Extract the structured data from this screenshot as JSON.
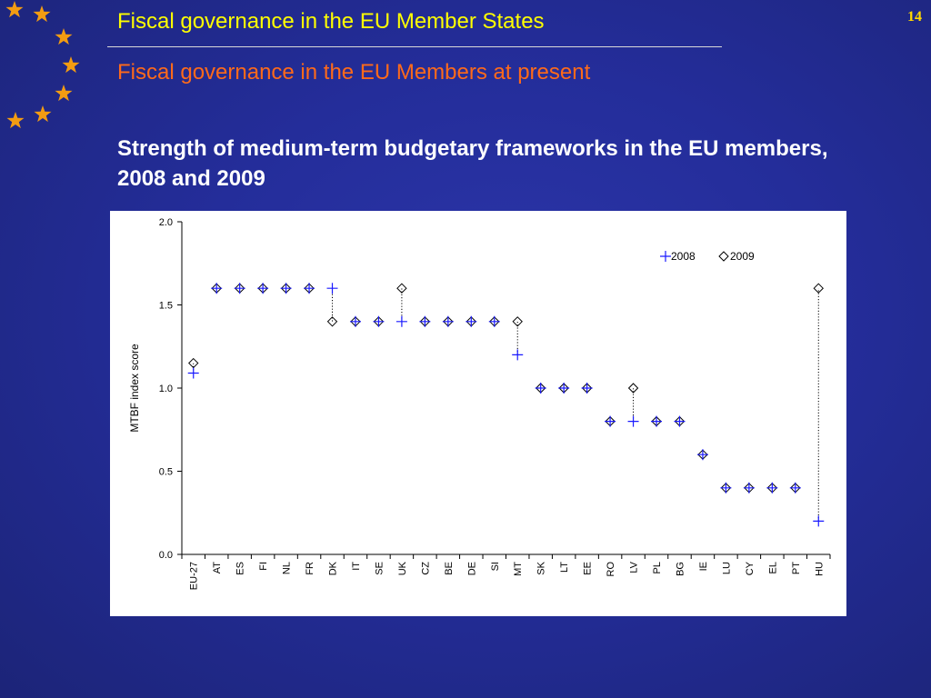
{
  "slide": {
    "page_number": "14",
    "title": "Fiscal governance in the EU Member States",
    "subtitle": "Fiscal governance in the EU Members at present",
    "heading": "Strength of medium-term budgetary frameworks in the EU members, 2008 and 2009",
    "title_color": "#ffff00",
    "subtitle_color": "#ff6a1a",
    "background_color": "#2a33a4",
    "star_color": "#f39c12"
  },
  "chart_data": {
    "type": "scatter",
    "title": "",
    "xlabel": "",
    "ylabel": "MTBF index score",
    "ylim": [
      0,
      2.0
    ],
    "yticks": [
      "0.0",
      "0.5",
      "1.0",
      "1.5",
      "2.0"
    ],
    "grid": false,
    "legend_position": "top-right",
    "categories": [
      "EU-27",
      "AT",
      "ES",
      "FI",
      "NL",
      "FR",
      "DK",
      "IT",
      "SE",
      "UK",
      "CZ",
      "BE",
      "DE",
      "SI",
      "MT",
      "SK",
      "LT",
      "EE",
      "RO",
      "LV",
      "PL",
      "BG",
      "IE",
      "LU",
      "CY",
      "EL",
      "PT",
      "HU"
    ],
    "series": [
      {
        "name": "2008",
        "marker": "plus",
        "color": "#1a1aff",
        "values": [
          1.09,
          1.6,
          1.6,
          1.6,
          1.6,
          1.6,
          1.6,
          1.4,
          1.4,
          1.4,
          1.4,
          1.4,
          1.4,
          1.4,
          1.2,
          1.0,
          1.0,
          1.0,
          0.8,
          0.8,
          0.8,
          0.8,
          0.6,
          0.4,
          0.4,
          0.4,
          0.4,
          0.2
        ]
      },
      {
        "name": "2009",
        "marker": "diamond",
        "color": "#000000",
        "values": [
          1.15,
          1.6,
          1.6,
          1.6,
          1.6,
          1.6,
          1.4,
          1.4,
          1.4,
          1.6,
          1.4,
          1.4,
          1.4,
          1.4,
          1.4,
          1.0,
          1.0,
          1.0,
          0.8,
          1.0,
          0.8,
          0.8,
          0.6,
          0.4,
          0.4,
          0.4,
          0.4,
          1.6
        ]
      }
    ]
  }
}
